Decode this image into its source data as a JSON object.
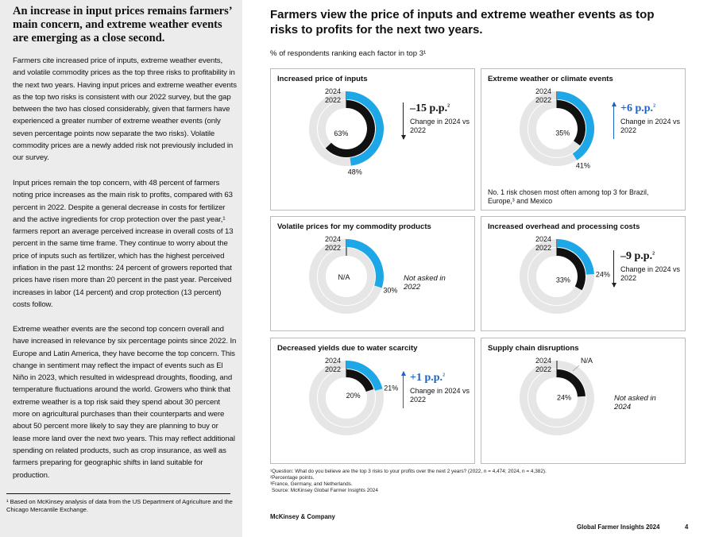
{
  "left": {
    "heading": "An increase in input prices remains farmers’ main concern, and extreme weather events are emerging as a close second.",
    "paragraphs": [
      "Farmers cite increased price of inputs, extreme weather events, and volatile commodity prices as the top three risks to profitability in the next two years. Having input prices and extreme weather events as the top two risks is consistent with our 2022 survey, but the gap between the two has closed considerably, given that farmers have experienced a greater number of extreme weather events (only seven percentage points now separate the two risks). Volatile commodity prices are a newly added risk not previously included in our survey.",
      "Input prices remain the top concern, with 48 percent of farmers noting price increases as the main risk to profits, compared with 63 percent in 2022. Despite a general decrease in costs for fertilizer and the active ingredients for crop protection over the past year,¹ farmers report an average perceived increase in overall costs of 13 percent in the same time frame. They continue to worry about the price of inputs such as fertilizer, which has the highest perceived inflation in the past 12 months: 24 percent of growers reported that prices have risen more than 20 percent in the past year. Perceived increases in labor (14 percent) and crop protection (13 percent) costs follow.",
      "Extreme weather events are the second top concern overall and have increased in relevance by six percentage points since 2022. In Europe and Latin America, they have become the top concern. This change in sentiment may reflect the impact of events such as El Niño in 2023, which resulted in widespread droughts, flooding, and temperature fluctuations around the world. Growers who think that extreme weather is a top risk said they spend about 30 percent more on agricultural purchases than their counterparts and were about 50 percent more likely to say they are planning to buy or lease more land over the next two years. This may reflect additional spending on related products, such as crop insurance, as well as farmers preparing for geographic shifts in land suitable for production."
    ],
    "footnote": "¹ Based on McKinsey analysis of data from the US Department of Agriculture and the Chicago Mercantile Exchange."
  },
  "chart": {
    "title": "Farmers view the price of inputs and extreme weather events as top risks to profits for the next two years.",
    "subtitle": "% of respondents ranking each factor in top 3¹",
    "year_outer": "2024",
    "year_inner": "2022",
    "colors": {
      "y2024": "#1ea7e6",
      "y2022": "#111111",
      "track": "#e6e6e6",
      "up": "#1c63c7"
    }
  },
  "chart_data": {
    "type": "donut",
    "series": [
      {
        "name": "2024"
      },
      {
        "name": "2022"
      }
    ],
    "panels": [
      {
        "title": "Increased price of inputs",
        "v2024": 48,
        "v2022": 63,
        "label2024": "48%",
        "label2022": "63%",
        "change": "–15 p.p.",
        "change_sup": "2",
        "change_note": "Change in 2024 vs 2022",
        "direction": "down",
        "note": ""
      },
      {
        "title": "Extreme weather or climate events",
        "v2024": 41,
        "v2022": 35,
        "label2024": "41%",
        "label2022": "35%",
        "change": "+6 p.p.",
        "change_sup": "2",
        "change_note": "Change in 2024 vs 2022",
        "direction": "up",
        "note": "No. 1 risk chosen most often among top 3 for Brazil, Europe,³ and Mexico"
      },
      {
        "title": "Volatile prices for my commodity products",
        "v2024": 30,
        "v2022": null,
        "label2024": "30%",
        "label2022": "N/A",
        "not_asked": "Not asked in 2022",
        "direction": "none"
      },
      {
        "title": "Increased overhead and processing costs",
        "v2024": 24,
        "v2022": 33,
        "label2024": "24%",
        "label2022": "33%",
        "change": "–9 p.p.",
        "change_sup": "2",
        "change_note": "Change in 2024 vs 2022",
        "direction": "down",
        "note": ""
      },
      {
        "title": "Decreased yields due to water scarcity",
        "v2024": 21,
        "v2022": 20,
        "label2024": "21%",
        "label2022": "20%",
        "change": "+1 p.p.",
        "change_sup": "2",
        "change_note": "Change in 2024 vs 2022",
        "direction": "up",
        "note": ""
      },
      {
        "title": "Supply chain disruptions",
        "v2024": null,
        "v2022": 24,
        "label2024": "N/A",
        "label2022": "24%",
        "not_asked": "Not asked in 2024",
        "direction": "none"
      }
    ]
  },
  "notes": [
    "¹Question: What do you believe are the top 3 risks to your profits over the next 2 years? (2022, n = 4,474; 2024, n = 4,382).",
    "²Percentage points.",
    "³France, Germany, and Netherlands.",
    "Source: McKinsey Global Farmer Insights 2024"
  ],
  "brand": "McKinsey & Company",
  "footer": "Global Farmer Insights 2024",
  "page_number": "4"
}
